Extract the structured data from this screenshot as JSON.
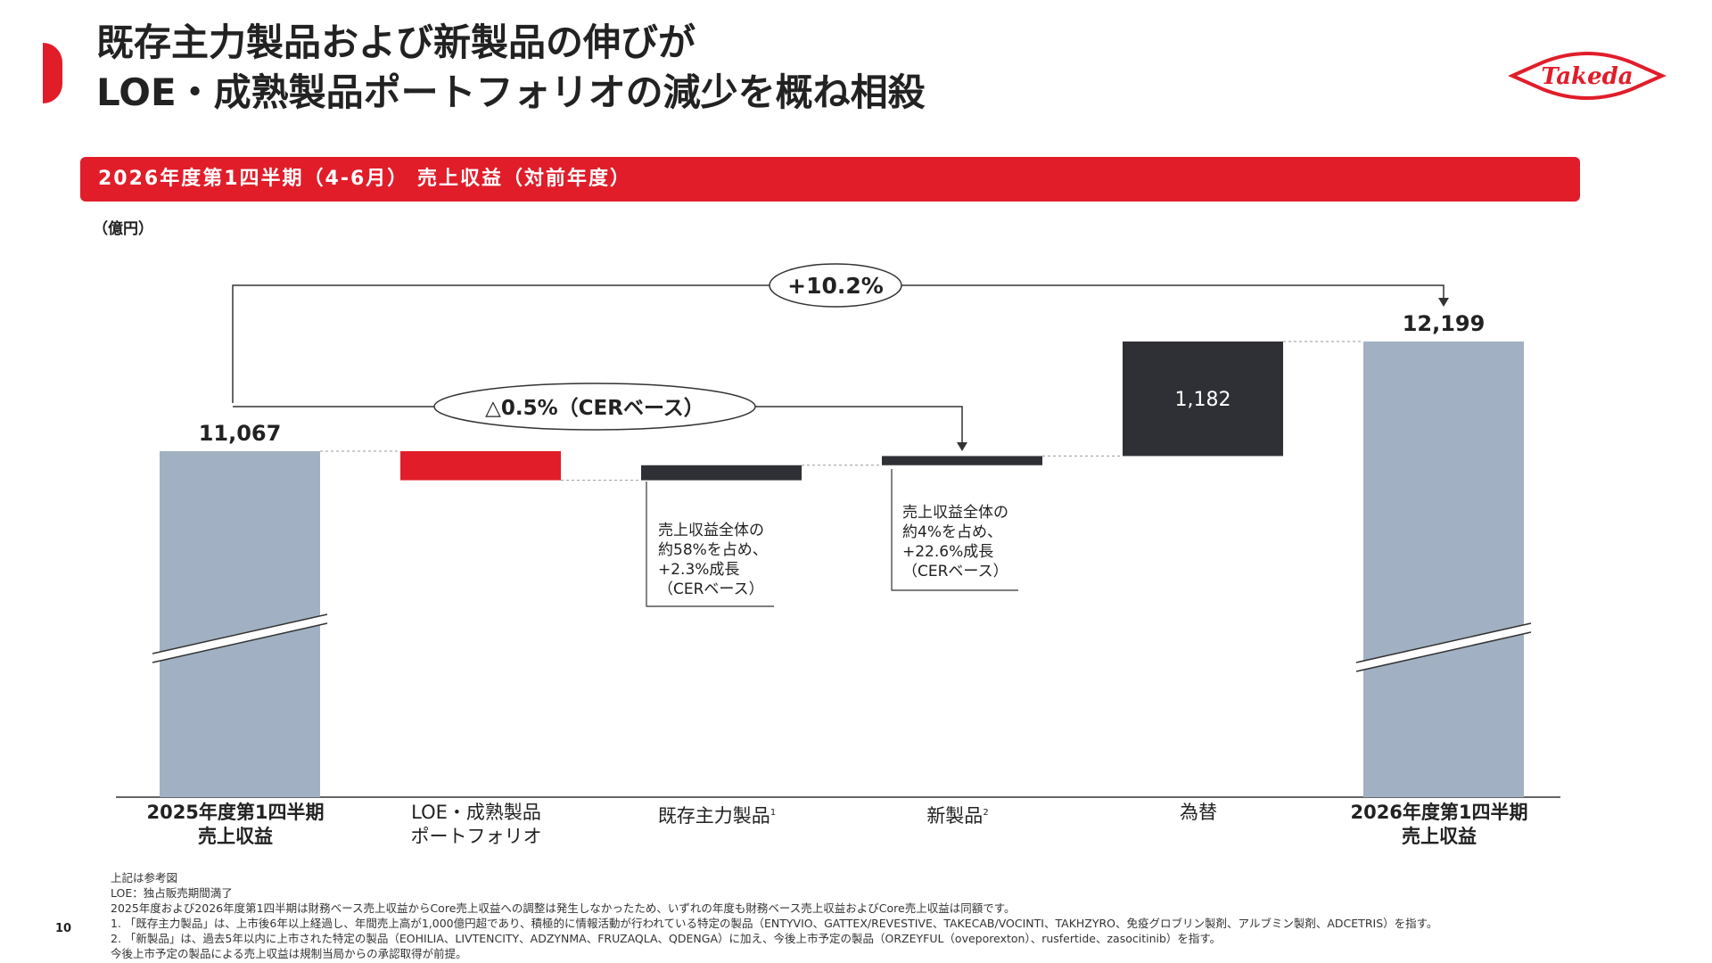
{
  "header": {
    "title_line1": "既存主力製品および新製品の伸びが",
    "title_line2": "LOE・成熟製品ポートフォリオの減少を概ね相殺",
    "logo_text": "Takeda",
    "accent_color": "#e11d2a"
  },
  "section_title": "2026年度第1四半期（4-6月） 売上収益（対前年度）",
  "unit_label": "（億円）",
  "chart_data": {
    "type": "bar",
    "subtype": "waterfall",
    "categories": [
      "2025年度第1四半期売上収益",
      "LOE・成熟製品ポートフォリオ",
      "既存主力製品",
      "新製品",
      "為替",
      "2026年度第1四半期売上収益"
    ],
    "start_value": 11067,
    "end_value": 12199,
    "start_label": "11,067",
    "end_label": "12,199",
    "fx_label": "1,182",
    "steps": [
      {
        "category": "LOE・成熟製品ポートフォリオ",
        "value": -300,
        "color": "#e11d2a"
      },
      {
        "category": "既存主力製品",
        "value": 155,
        "color": "#2f3035"
      },
      {
        "category": "新製品",
        "value": 95,
        "color": "#2f3035"
      },
      {
        "category": "為替",
        "value": 1182,
        "color": "#2f3035"
      }
    ],
    "total_color": "#a1b1c3",
    "growth_total_label": "+10.2%",
    "growth_cer_label": "△0.5%（CERベース）",
    "axis_break": true,
    "ylim": [
      0,
      13000
    ]
  },
  "categories_display": [
    {
      "line1": "2025年度第1四半期",
      "line2": "売上収益",
      "bold": true
    },
    {
      "line1": "LOE・成熟製品",
      "line2": "ポートフォリオ",
      "bold": false
    },
    {
      "line1": "既存主力製品",
      "sup": "1",
      "bold": false
    },
    {
      "line1": "新製品",
      "sup": "2",
      "bold": false
    },
    {
      "line1": "為替",
      "bold": false
    },
    {
      "line1": "2026年度第1四半期",
      "line2": "売上収益",
      "bold": true
    }
  ],
  "notes": {
    "core": [
      "売上収益全体の",
      "約58%を占め、",
      "+2.3%成長",
      "（CERベース）"
    ],
    "new": [
      "売上収益全体の",
      "約4%を占め、",
      "+22.6%成長",
      "（CERベース）"
    ]
  },
  "footnotes": [
    "上記は参考図",
    "LOE：独占販売期間満了",
    "2025年度および2026年度第1四半期は財務ベース売上収益からCore売上収益への調整は発生しなかったため、いずれの年度も財務ベース売上収益およびCore売上収益は同額です。",
    "1. 「既存主力製品」は、上市後6年以上経過し、年間売上高が1,000億円超であり、積極的に情報活動が行われている特定の製品（ENTYVIO、GATTEX/REVESTIVE、TAKECAB/VOCINTI、TAKHZYRO、免疫グロブリン製剤、アルブミン製剤、ADCETRIS）を指す。",
    "2. 「新製品」は、過去5年以内に上市された特定の製品（EOHILIA、LIVTENCITY、ADZYNMA、FRUZAQLA、QDENGA）に加え、今後上市予定の製品（ORZEYFUL（oveporexton）、rusfertide、zasocitinib）を指す。",
    "今後上市予定の製品による売上収益は規制当局からの承認取得が前提。"
  ],
  "page_number": "10"
}
